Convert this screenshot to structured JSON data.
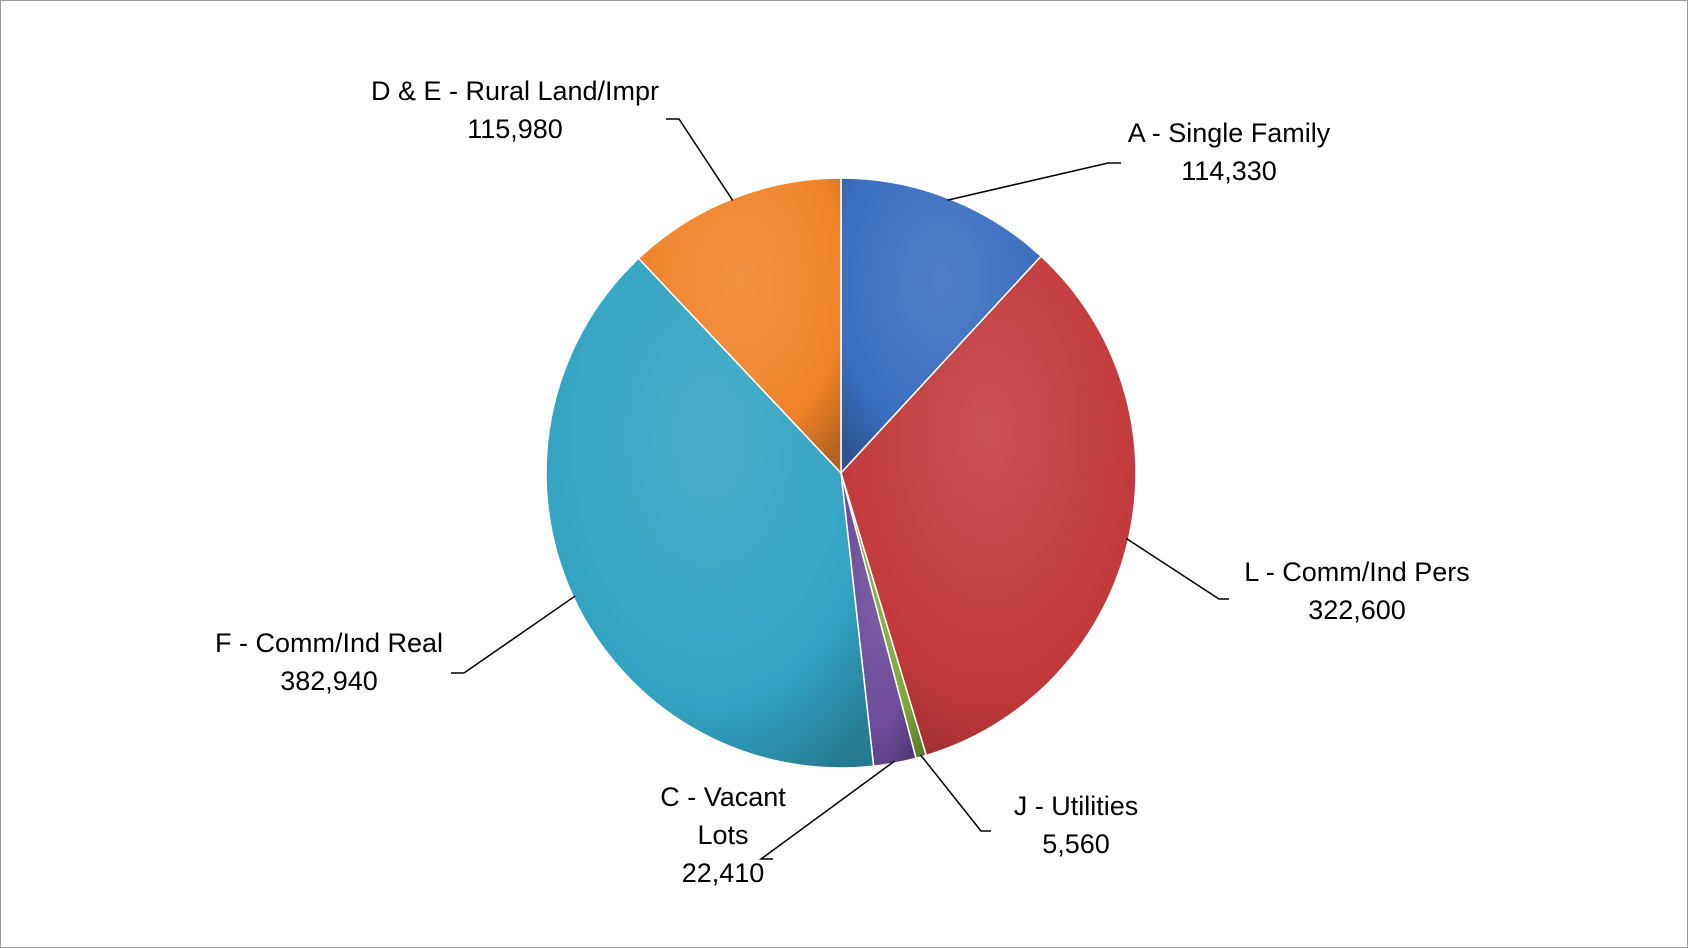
{
  "chart_data": {
    "type": "pie",
    "title": "",
    "legend": "none",
    "slices": [
      {
        "label": "A - Single Family",
        "value": 114330,
        "value_label": "114,330",
        "color": "#3a6ec0"
      },
      {
        "label": "L - Comm/Ind Pers",
        "value": 322600,
        "value_label": "322,600",
        "color": "#c2393b"
      },
      {
        "label": "J - Utilities",
        "value": 5560,
        "value_label": "5,560",
        "color": "#7fa83a"
      },
      {
        "label": "C - Vacant Lots",
        "label_lines": [
          "C - Vacant",
          "Lots"
        ],
        "value": 22410,
        "value_label": "22,410",
        "color": "#6d4c9a"
      },
      {
        "label": "F - Comm/Ind Real",
        "value": 382940,
        "value_label": "382,940",
        "color": "#32a3c2"
      },
      {
        "label": "D & E - Rural Land/Impr",
        "value": 115980,
        "value_label": "115,980",
        "color": "#f0832a"
      }
    ]
  }
}
